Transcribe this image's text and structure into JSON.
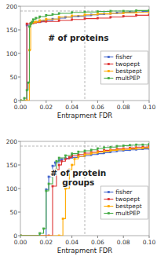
{
  "chart_data": [
    {
      "type": "step",
      "title": "# of proteins",
      "x_label": "Entrapment FDR",
      "xlim": [
        0.0,
        0.1
      ],
      "ylim": [
        0,
        200
      ],
      "xticks": [
        {
          "value": 0.0,
          "label": "0.00"
        },
        0.02,
        0.04,
        0.06,
        0.08,
        {
          "value": 0.1,
          "label": "0.10"
        }
      ],
      "yticks": [
        0,
        50,
        100,
        150,
        200
      ],
      "grid": false,
      "legend": "right",
      "marker": "square",
      "reference_lines": [
        {
          "axis": "y",
          "value": 190
        },
        {
          "axis": "x",
          "value": 0.05
        }
      ],
      "series": [
        {
          "name": "fisher",
          "color": "#4466cc",
          "x": [
            0.0,
            0.005,
            0.008,
            0.01,
            0.012,
            0.014,
            0.016,
            0.018,
            0.02,
            0.025,
            0.03,
            0.035,
            0.04,
            0.045,
            0.05,
            0.055,
            0.06,
            0.065,
            0.07,
            0.075,
            0.08,
            0.085,
            0.09,
            0.095,
            0.1
          ],
          "values": [
            0,
            160,
            163,
            165,
            166,
            167,
            168,
            169,
            170,
            173,
            175,
            177,
            178,
            179,
            180,
            182,
            183,
            184,
            185,
            186,
            187,
            188,
            188,
            189,
            190
          ]
        },
        {
          "name": "twopept",
          "color": "#dd3333",
          "x": [
            0.0,
            0.005,
            0.008,
            0.01,
            0.012,
            0.015,
            0.02,
            0.03,
            0.04,
            0.05,
            0.06,
            0.07,
            0.08,
            0.09,
            0.1
          ],
          "values": [
            0,
            163,
            164,
            165,
            166,
            167,
            168,
            170,
            172,
            174,
            175,
            177,
            179,
            181,
            182
          ]
        },
        {
          "name": "bestpept",
          "color": "#ffaa00",
          "x": [
            0.0,
            0.005,
            0.007,
            0.008,
            0.009,
            0.01,
            0.012,
            0.015,
            0.02,
            0.03,
            0.04,
            0.05,
            0.06,
            0.07,
            0.08,
            0.09,
            0.1
          ],
          "values": [
            0,
            0,
            107,
            163,
            165,
            166,
            167,
            170,
            173,
            177,
            180,
            182,
            184,
            185,
            186,
            187,
            188
          ]
        },
        {
          "name": "multPEP",
          "color": "#44aa44",
          "x": [
            0.0,
            0.003,
            0.005,
            0.006,
            0.007,
            0.008,
            0.009,
            0.01,
            0.012,
            0.015,
            0.02,
            0.025,
            0.03,
            0.04,
            0.05,
            0.06,
            0.07,
            0.08,
            0.09,
            0.1
          ],
          "values": [
            0,
            5,
            22,
            38,
            157,
            163,
            167,
            172,
            175,
            178,
            181,
            183,
            185,
            187,
            188,
            189,
            190,
            190,
            191,
            191
          ]
        }
      ]
    },
    {
      "type": "step",
      "title": "# of protein\ngroups",
      "x_label": "Entrapment FDR",
      "xlim": [
        0.0,
        0.1
      ],
      "ylim": [
        0,
        200
      ],
      "xticks": [
        {
          "value": 0.0,
          "label": "0.00"
        },
        0.02,
        0.04,
        0.06,
        0.08,
        {
          "value": 0.1,
          "label": "0.10"
        }
      ],
      "yticks": [
        0,
        50,
        100,
        150,
        200
      ],
      "grid": false,
      "legend": "right",
      "marker": "square",
      "reference_lines": [
        {
          "axis": "y",
          "value": 190
        },
        {
          "axis": "x",
          "value": 0.05
        }
      ],
      "series": [
        {
          "name": "fisher",
          "color": "#4466cc",
          "x": [
            0.0,
            0.015,
            0.02,
            0.022,
            0.025,
            0.027,
            0.03,
            0.032,
            0.035,
            0.038,
            0.04,
            0.045,
            0.05,
            0.055,
            0.06,
            0.065,
            0.07,
            0.075,
            0.08,
            0.085,
            0.09,
            0.095,
            0.1
          ],
          "values": [
            0,
            0,
            98,
            125,
            148,
            155,
            160,
            162,
            164,
            165,
            166,
            168,
            170,
            172,
            174,
            176,
            178,
            180,
            181,
            182,
            183,
            184,
            185
          ]
        },
        {
          "name": "twopept",
          "color": "#dd3333",
          "x": [
            0.0,
            0.022,
            0.025,
            0.028,
            0.03,
            0.032,
            0.035,
            0.038,
            0.04,
            0.045,
            0.05,
            0.055,
            0.06,
            0.065,
            0.07,
            0.075,
            0.08,
            0.085,
            0.09,
            0.095,
            0.1
          ],
          "values": [
            0,
            0,
            105,
            140,
            150,
            158,
            163,
            166,
            170,
            172,
            175,
            177,
            179,
            181,
            182,
            184,
            185,
            186,
            187,
            188,
            190
          ]
        },
        {
          "name": "bestpept",
          "color": "#ffaa00",
          "x": [
            0.0,
            0.03,
            0.033,
            0.035,
            0.038,
            0.04,
            0.042,
            0.045,
            0.05,
            0.055,
            0.06,
            0.065,
            0.07,
            0.075,
            0.08,
            0.085,
            0.09,
            0.095,
            0.1
          ],
          "values": [
            0,
            0,
            36,
            100,
            140,
            150,
            163,
            168,
            172,
            175,
            177,
            179,
            181,
            182,
            183,
            184,
            185,
            186,
            187
          ]
        },
        {
          "name": "multPEP",
          "color": "#44aa44",
          "x": [
            0.0,
            0.015,
            0.018,
            0.02,
            0.022,
            0.025,
            0.028,
            0.03,
            0.035,
            0.04,
            0.045,
            0.05,
            0.055,
            0.06,
            0.065,
            0.07,
            0.075,
            0.08,
            0.085,
            0.09,
            0.095,
            0.1
          ],
          "values": [
            0,
            5,
            15,
            95,
            110,
            130,
            158,
            165,
            170,
            174,
            178,
            180,
            182,
            185,
            187,
            188,
            190,
            191,
            192,
            193,
            193,
            194
          ]
        }
      ]
    }
  ]
}
